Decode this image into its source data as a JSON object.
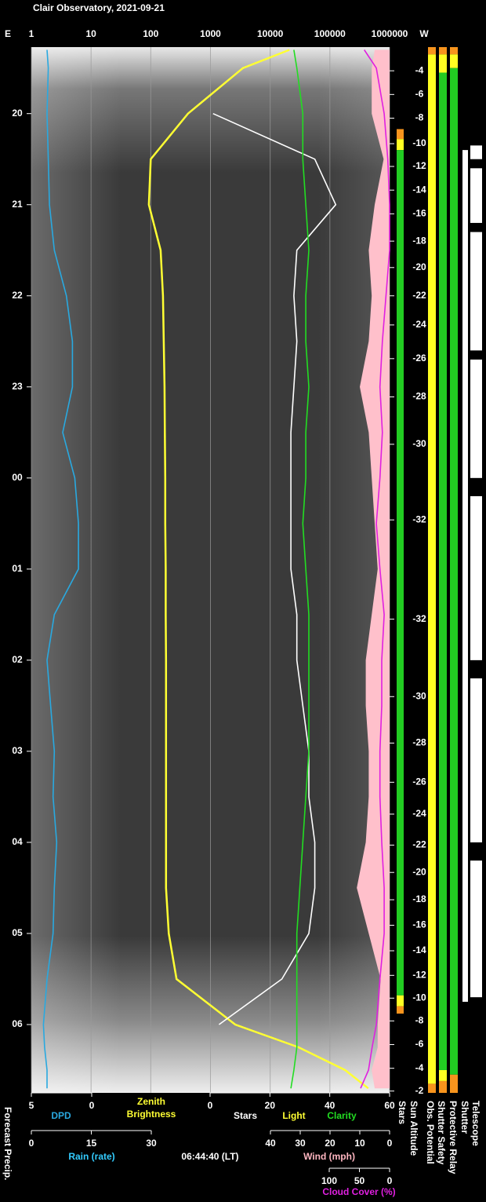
{
  "chart_data": {
    "type": "line",
    "title": "Clair Observatory, 2021-09-21",
    "timestamp": "06:44:40 (LT)",
    "left_label": "Forecast Precip.",
    "x_left_label": "E",
    "x_right_label": "W",
    "x_label": "Zenith Brightness",
    "x_label_color": "#ffff33",
    "xlim": [
      1,
      1000000
    ],
    "xticks": [
      1,
      10,
      100,
      1000,
      10000,
      100000,
      1000000
    ],
    "log_x": true,
    "grid": true,
    "ylim": [
      19.27,
      30.75
    ],
    "yticks": [
      20,
      21,
      22,
      23,
      {
        "value": 24,
        "label": "00"
      },
      {
        "value": 25,
        "label": "01"
      },
      {
        "value": 26,
        "label": "02"
      },
      {
        "value": 27,
        "label": "03"
      },
      {
        "value": 28,
        "label": "04"
      },
      {
        "value": 29,
        "label": "05"
      },
      {
        "value": 30,
        "label": "06"
      }
    ],
    "x": [
      19.3,
      19.5,
      20,
      20.5,
      21,
      21.5,
      22,
      22.5,
      23,
      23.5,
      24,
      24.5,
      25,
      25.5,
      26,
      26.5,
      27,
      27.5,
      28,
      28.5,
      29,
      29.5,
      30,
      30.25,
      30.5,
      30.7
    ],
    "axes": {
      "dpd": {
        "label": "DPD",
        "color": "#29a9e0",
        "lim": [
          5,
          0
        ],
        "ticks": [
          5,
          0
        ]
      },
      "stars": {
        "label": "Stars",
        "color": "#ffffff",
        "lim": [
          0,
          60
        ],
        "ticks": [
          0,
          20,
          40,
          60
        ]
      },
      "rain": {
        "label": "Rain (rate)",
        "color": "#33ccff",
        "lim": [
          0,
          30
        ],
        "ticks": [
          0,
          15,
          30
        ]
      },
      "wind": {
        "label": "Wind (mph)",
        "color": "#ffb6c1",
        "lim": [
          40,
          0
        ],
        "ticks": [
          40,
          30,
          20,
          10,
          0
        ]
      },
      "cloud": {
        "label": "Cloud Cover (%)",
        "color": "#e020e0",
        "lim": [
          100,
          0
        ],
        "ticks": [
          100,
          50,
          0
        ]
      }
    },
    "series": [
      {
        "name": "Wind (mph)",
        "axis": "wind",
        "kind": "area",
        "color": "#ffc0cb",
        "values": [
          5,
          6,
          6,
          2,
          5,
          7,
          6,
          7,
          10,
          7,
          6,
          5,
          4,
          6,
          8,
          8,
          7,
          7,
          8,
          11,
          7,
          3,
          4,
          4,
          6,
          5
        ]
      },
      {
        "name": "DPD",
        "axis": "dpd",
        "color": "#29a9e0",
        "values": [
          3.7,
          3.6,
          3.7,
          3.6,
          3.5,
          3.1,
          2.1,
          1.6,
          1.6,
          2.4,
          1.4,
          1.1,
          1.1,
          3.1,
          3.7,
          3.4,
          3.1,
          3.2,
          2.9,
          3.1,
          3.2,
          3.7,
          4.0,
          3.9,
          3.7,
          3.7
        ]
      },
      {
        "name": "Light",
        "axis": "x",
        "color": "#ffff33",
        "values": [
          21000,
          3500,
          420,
          100,
          93,
          146,
          160,
          165,
          170,
          172,
          175,
          175,
          178,
          178,
          180,
          180,
          180,
          180,
          180,
          180,
          200,
          270,
          2600,
          30000,
          180000,
          440000
        ]
      },
      {
        "name": "Stars",
        "axis": "stars",
        "color": "#ffffff",
        "values": [
          null,
          null,
          1,
          35,
          42,
          29,
          28,
          29,
          28,
          27,
          27,
          27,
          27,
          29,
          29,
          31,
          33,
          33,
          35,
          35,
          33,
          24,
          3,
          null,
          null,
          null
        ]
      },
      {
        "name": "Clarity",
        "axis": "stars",
        "color": "#22dd22",
        "values": [
          28,
          29,
          31,
          31,
          32,
          33,
          32,
          32,
          33,
          32,
          32,
          31,
          32,
          33,
          33,
          33,
          33,
          32,
          31,
          30,
          29,
          29,
          29,
          29,
          28,
          27
        ]
      },
      {
        "name": "Cloud Cover (%)",
        "axis": "cloud",
        "color": "#e020e0",
        "values": [
          42,
          22,
          9,
          3,
          0,
          0,
          6,
          12,
          16,
          12,
          16,
          22,
          16,
          9,
          13,
          13,
          16,
          16,
          13,
          9,
          9,
          16,
          22,
          29,
          35,
          48
        ]
      }
    ],
    "sun_altitude": {
      "label": "Sun Altitude",
      "x": [
        19.53,
        19.79,
        20.05,
        20.33,
        20.58,
        20.84,
        21.1,
        21.4,
        21.69,
        22.0,
        22.32,
        22.69,
        23.11,
        23.63,
        24.46,
        25.55,
        26.4,
        26.91,
        27.34,
        27.69,
        28.03,
        28.33,
        28.63,
        28.91,
        29.19,
        29.46,
        29.71,
        29.96,
        30.22,
        30.48,
        30.73
      ],
      "values": [
        -4,
        -6,
        -8,
        -10,
        -12,
        -14,
        -16,
        -18,
        -20,
        -22,
        -24,
        -26,
        -28,
        -30,
        -32,
        -32,
        -30,
        -28,
        -26,
        -24,
        -22,
        -20,
        -18,
        -16,
        -14,
        -12,
        -10,
        -8,
        -6,
        -4,
        -2
      ]
    },
    "status_bars": [
      {
        "name": "Stars",
        "segments": [
          {
            "start": 20.17,
            "end": 20.28,
            "color": "#f7941d"
          },
          {
            "start": 20.28,
            "end": 20.4,
            "color": "#ffff22"
          },
          {
            "start": 20.4,
            "end": 29.68,
            "color": "#22cc22"
          },
          {
            "start": 29.68,
            "end": 29.8,
            "color": "#ffff22"
          },
          {
            "start": 29.8,
            "end": 29.88,
            "color": "#f7941d"
          }
        ]
      },
      {
        "name": "Obs. Potential",
        "segments": [
          {
            "start": 19.27,
            "end": 19.35,
            "color": "#f7941d"
          },
          {
            "start": 19.35,
            "end": 30.65,
            "color": "#ffff22"
          },
          {
            "start": 30.65,
            "end": 30.75,
            "color": "#f7941d"
          }
        ]
      },
      {
        "name": "Shutter Safety",
        "segments": [
          {
            "start": 19.27,
            "end": 19.35,
            "color": "#f7941d"
          },
          {
            "start": 19.35,
            "end": 19.55,
            "color": "#ffff22"
          },
          {
            "start": 19.55,
            "end": 30.5,
            "color": "#22cc22"
          },
          {
            "start": 30.5,
            "end": 30.62,
            "color": "#ffff22"
          },
          {
            "start": 30.62,
            "end": 30.75,
            "color": "#f7941d"
          }
        ]
      },
      {
        "name": "Protective Relay",
        "segments": [
          {
            "start": 19.27,
            "end": 19.35,
            "color": "#f7941d"
          },
          {
            "start": 19.35,
            "end": 19.5,
            "color": "#ffff22"
          },
          {
            "start": 19.5,
            "end": 30.55,
            "color": "#22cc22"
          },
          {
            "start": 30.55,
            "end": 30.75,
            "color": "#f7941d"
          }
        ]
      },
      {
        "name": "Shutter",
        "segments": [
          {
            "start": 20.4,
            "end": 29.75,
            "color": "#ffffff"
          }
        ]
      },
      {
        "name": "Telescope",
        "segments": [
          {
            "start": 20.35,
            "end": 20.5,
            "color": "#ffffff"
          },
          {
            "start": 20.6,
            "end": 21.2,
            "color": "#ffffff"
          },
          {
            "start": 21.3,
            "end": 22.6,
            "color": "#ffffff"
          },
          {
            "start": 22.7,
            "end": 24.0,
            "color": "#ffffff"
          },
          {
            "start": 24.2,
            "end": 26.0,
            "color": "#ffffff"
          },
          {
            "start": 26.2,
            "end": 28.0,
            "color": "#ffffff"
          },
          {
            "start": 28.2,
            "end": 29.7,
            "color": "#ffffff"
          }
        ]
      }
    ]
  }
}
